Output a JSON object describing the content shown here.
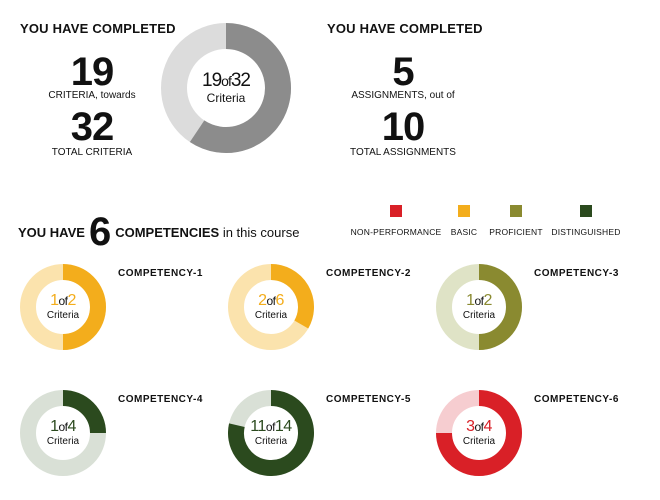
{
  "criteria_section": {
    "header": "YOU HAVE COMPLETED",
    "completed": "19",
    "completed_label": "CRITERIA, towards",
    "total": "32",
    "total_label": "TOTAL CRITERIA",
    "donut": {
      "completed": 19,
      "total": 32,
      "of": "of",
      "caption": "Criteria",
      "fill_color": "#8c8c8c",
      "track_color": "#dcdcdc"
    }
  },
  "assignments_section": {
    "header": "YOU HAVE COMPLETED",
    "completed": "5",
    "completed_label": "ASSIGNMENTS, out of",
    "total": "10",
    "total_label": "TOTAL ASSIGNMENTS"
  },
  "competencies_header": {
    "prefix": "YOU HAVE",
    "count": "6",
    "word": "COMPETENCIES",
    "suffix": "in this course"
  },
  "legend": [
    {
      "label": "NON-PERFORMANCE",
      "color": "#d92027"
    },
    {
      "label": "BASIC",
      "color": "#f3ad1c"
    },
    {
      "label": "PROFICIENT",
      "color": "#8a8a30"
    },
    {
      "label": "DISTINGUISHED",
      "color": "#2b4a1e"
    }
  ],
  "competencies": [
    {
      "name": "COMPETENCY-1",
      "completed": 1,
      "total": 2,
      "of": "of",
      "caption": "Criteria",
      "level": "BASIC",
      "fill_color": "#f3ad1c",
      "track_color": "#fbe3ad"
    },
    {
      "name": "COMPETENCY-2",
      "completed": 2,
      "total": 6,
      "of": "of",
      "caption": "Criteria",
      "level": "BASIC",
      "fill_color": "#f3ad1c",
      "track_color": "#fbe3ad"
    },
    {
      "name": "COMPETENCY-3",
      "completed": 1,
      "total": 2,
      "of": "of",
      "caption": "Criteria",
      "level": "PROFICIENT",
      "fill_color": "#8a8a30",
      "track_color": "#dfe3c6"
    },
    {
      "name": "COMPETENCY-4",
      "completed": 1,
      "total": 4,
      "of": "of",
      "caption": "Criteria",
      "level": "DISTINGUISHED",
      "fill_color": "#2b4a1e",
      "track_color": "#d9e0d6"
    },
    {
      "name": "COMPETENCY-5",
      "completed": 11,
      "total": 14,
      "of": "of",
      "caption": "Criteria",
      "level": "DISTINGUISHED",
      "fill_color": "#2b4a1e",
      "track_color": "#d9e0d6"
    },
    {
      "name": "COMPETENCY-6",
      "completed": 3,
      "total": 4,
      "of": "of",
      "caption": "Criteria",
      "level": "NON-PERFORMANCE",
      "fill_color": "#d92027",
      "track_color": "#f6cdd0"
    }
  ]
}
